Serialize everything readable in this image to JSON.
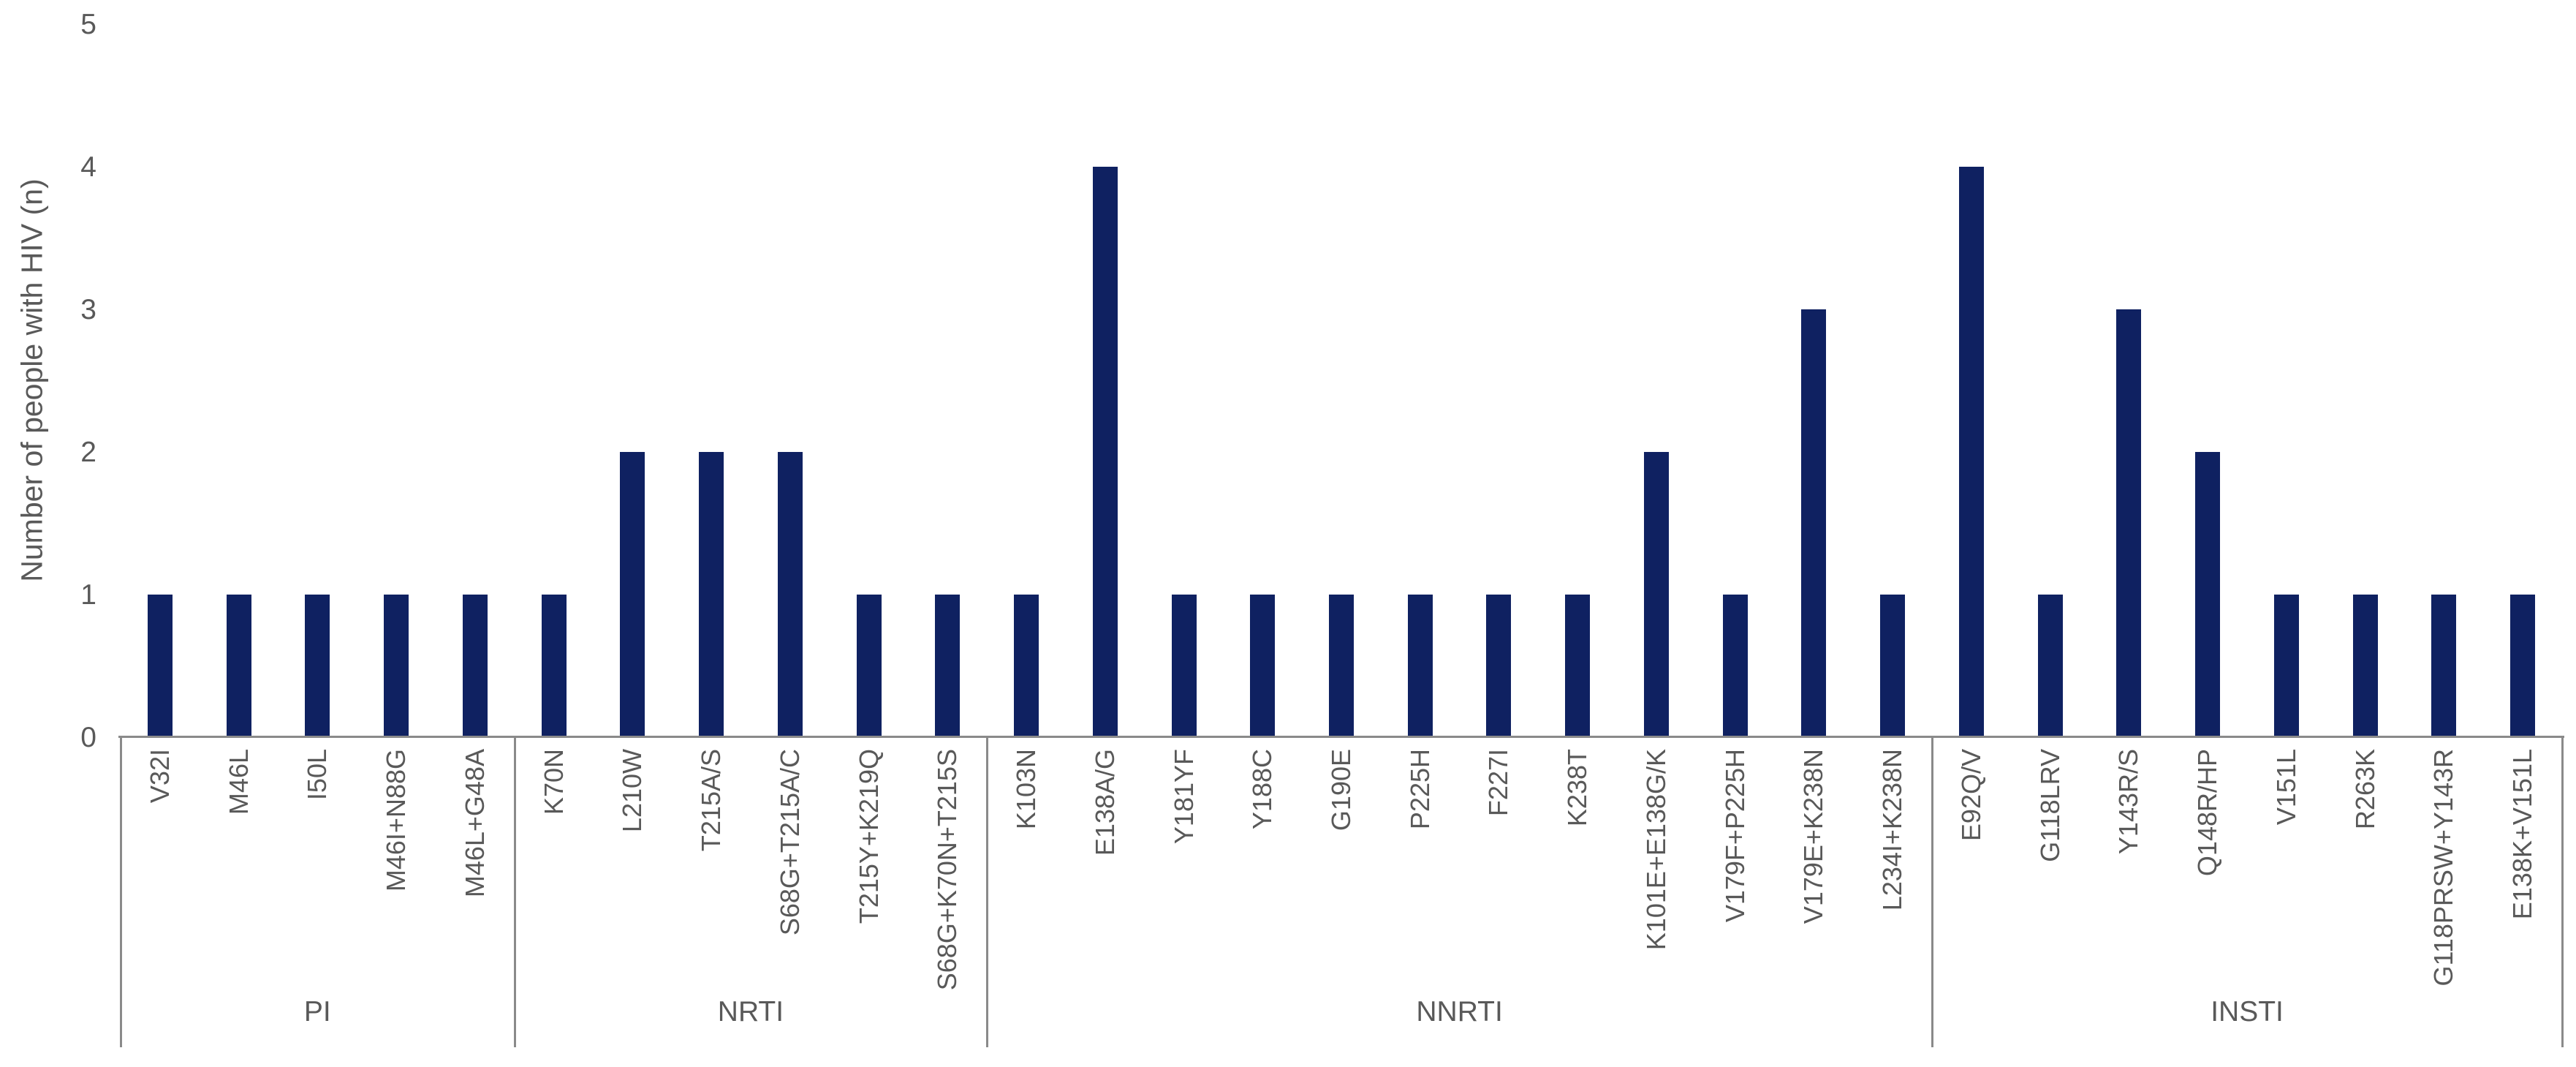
{
  "chart_data": {
    "type": "bar",
    "title": "",
    "xlabel": "",
    "ylabel": "Number of people with HIV (n)",
    "ylim": [
      0,
      5
    ],
    "yticks": [
      0,
      1,
      2,
      3,
      4,
      5
    ],
    "grid": false,
    "legend_position": "none",
    "bar_color": "#0f2161",
    "axis_color": "#8a8a8a",
    "text_color": "#595959",
    "groups": [
      {
        "label": "PI",
        "categories": [
          "V32I",
          "M46L",
          "I50L",
          "M46I+N88G",
          "M46L+G48A"
        ],
        "values": [
          1,
          1,
          1,
          1,
          1
        ]
      },
      {
        "label": "NRTI",
        "categories": [
          "K70N",
          "L210W",
          "T215A/S",
          "S68G+T215A/C",
          "T215Y+K219Q",
          "S68G+K70N+T215S"
        ],
        "values": [
          1,
          2,
          2,
          2,
          1,
          1
        ]
      },
      {
        "label": "NNRTI",
        "categories": [
          "K103N",
          "E138A/G",
          "Y181YF",
          "Y188C",
          "G190E",
          "P225H",
          "F227I",
          "K238T",
          "K101E+E138G/K",
          "V179F+P225H",
          "V179E+K238N",
          "L234I+K238N"
        ],
        "values": [
          1,
          4,
          1,
          1,
          1,
          1,
          1,
          1,
          2,
          1,
          3,
          1
        ]
      },
      {
        "label": "INSTI",
        "categories": [
          "E92Q/V",
          "G118LRV",
          "Y143R/S",
          "Q148R/HP",
          "V151L",
          "R263K",
          "G118PRSW+Y143R",
          "E138K+V151L"
        ],
        "values": [
          4,
          1,
          3,
          2,
          1,
          1,
          1,
          1
        ]
      }
    ]
  }
}
